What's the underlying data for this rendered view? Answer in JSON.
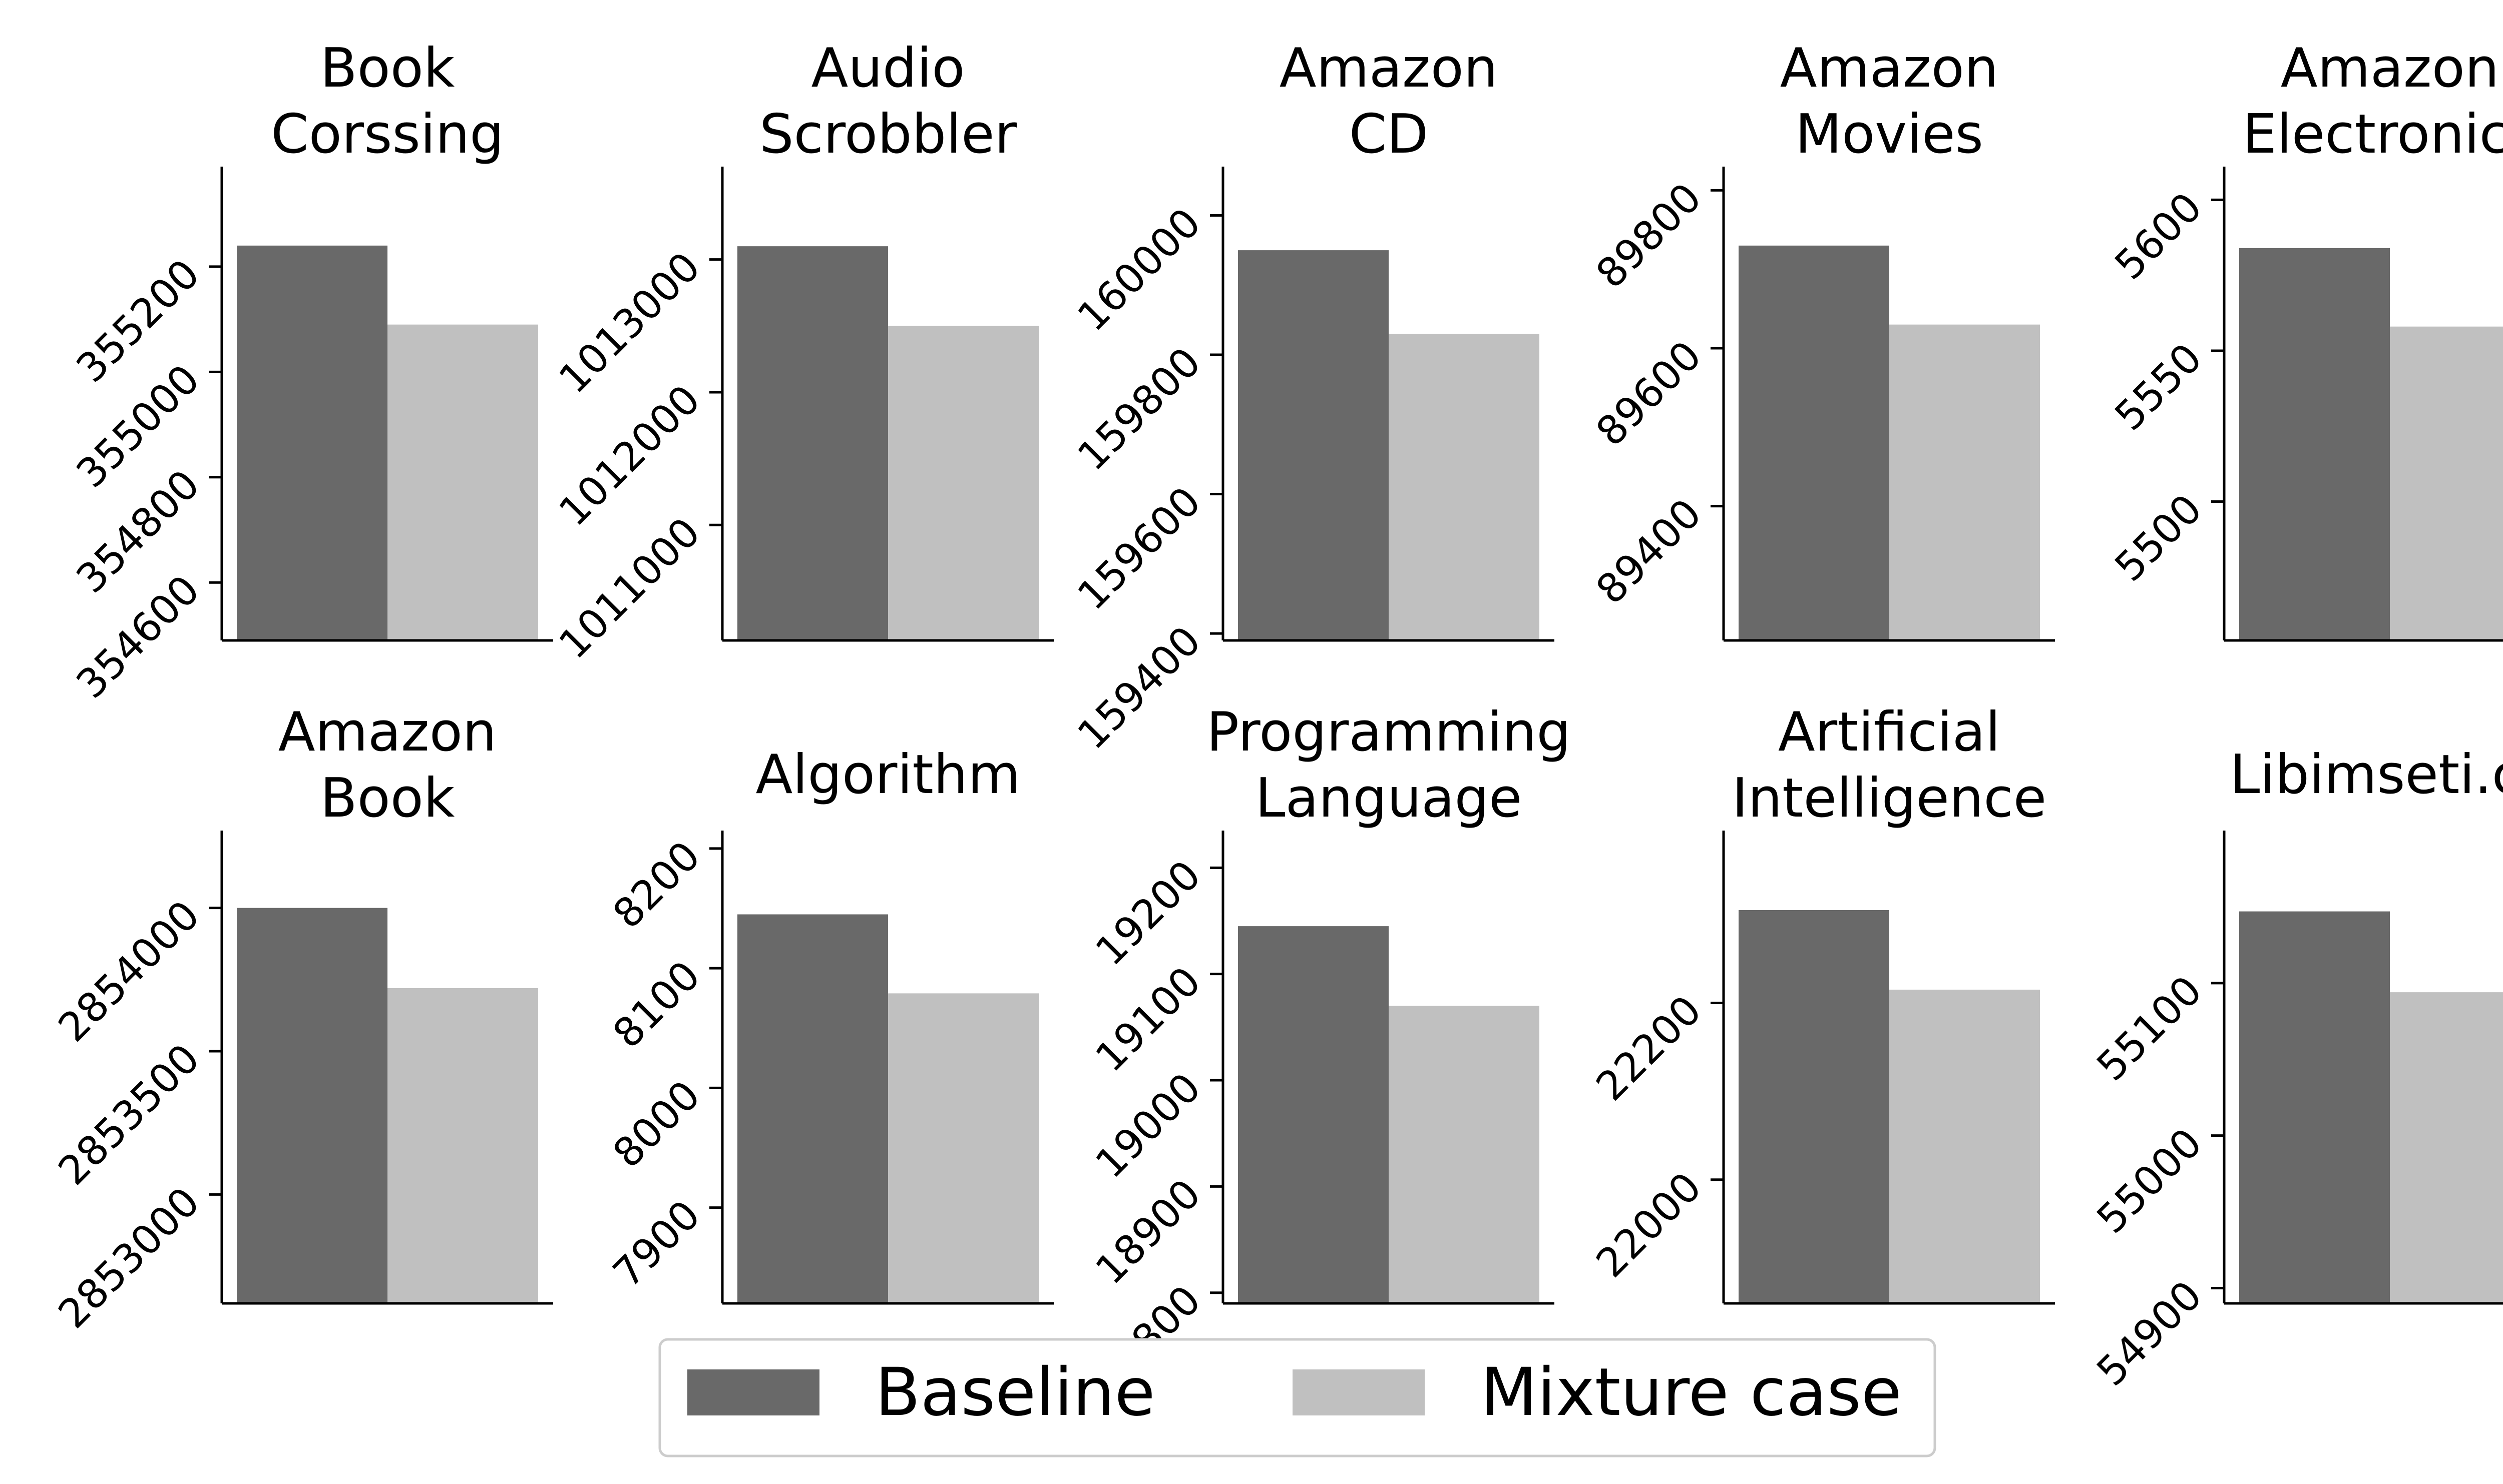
{
  "chart_data": {
    "type": "bar",
    "legend": {
      "placement": "bottom-center",
      "entries": [
        {
          "name": "Baseline",
          "color": "#696969"
        },
        {
          "name": "Mixture case",
          "color": "#c0c0c0"
        }
      ]
    },
    "grid": false,
    "panels": [
      {
        "title_lines": [
          "Book",
          "Corssing"
        ],
        "ylim": [
          354490,
          355390
        ],
        "yticks": [
          354600,
          354800,
          355000,
          355200
        ],
        "ytick_labels": [
          "354600",
          "354800",
          "355000",
          "355200"
        ],
        "series": [
          {
            "name": "Baseline",
            "value": 355240
          },
          {
            "name": "Mixture case",
            "value": 355090
          }
        ]
      },
      {
        "title_lines": [
          "Audio",
          "Scrobbler"
        ],
        "ylim": [
          1010130,
          1013700
        ],
        "yticks": [
          1011000,
          1012000,
          1013000
        ],
        "ytick_labels": [
          "1011000",
          "1012000",
          "1013000"
        ],
        "series": [
          {
            "name": "Baseline",
            "value": 1013100
          },
          {
            "name": "Mixture case",
            "value": 1012500
          }
        ]
      },
      {
        "title_lines": [
          "Amazon",
          "CD"
        ],
        "ylim": [
          159390,
          160070
        ],
        "yticks": [
          159400,
          159600,
          159800,
          160000
        ],
        "ytick_labels": [
          "159400",
          "159600",
          "159800",
          "160000"
        ],
        "series": [
          {
            "name": "Baseline",
            "value": 159950
          },
          {
            "name": "Mixture case",
            "value": 159830
          }
        ]
      },
      {
        "title_lines": [
          "Amazon",
          "Movies"
        ],
        "ylim": [
          89230,
          89830
        ],
        "yticks": [
          89400,
          89600,
          89800
        ],
        "ytick_labels": [
          "89400",
          "89600",
          "89800"
        ],
        "series": [
          {
            "name": "Baseline",
            "value": 89730
          },
          {
            "name": "Mixture case",
            "value": 89630
          }
        ]
      },
      {
        "title_lines": [
          "Amazon",
          "Electronics"
        ],
        "ylim": [
          5454,
          5611
        ],
        "yticks": [
          5500,
          5550,
          5600
        ],
        "ytick_labels": [
          "5500",
          "5550",
          "5600"
        ],
        "series": [
          {
            "name": "Baseline",
            "value": 5584
          },
          {
            "name": "Mixture case",
            "value": 5558
          }
        ]
      },
      {
        "title_lines": [
          "Amazon",
          "Book"
        ],
        "ylim": [
          2852620,
          2854270
        ],
        "yticks": [
          2853000,
          2853500,
          2854000
        ],
        "ytick_labels": [
          "2853000",
          "2853500",
          "2854000"
        ],
        "series": [
          {
            "name": "Baseline",
            "value": 2854000
          },
          {
            "name": "Mixture case",
            "value": 2853720
          }
        ]
      },
      {
        "title_lines": [
          "Algorithm"
        ],
        "ylim": [
          7820,
          8215
        ],
        "yticks": [
          7900,
          8000,
          8100,
          8200
        ],
        "ytick_labels": [
          "7900",
          "8000",
          "8100",
          "8200"
        ],
        "series": [
          {
            "name": "Baseline",
            "value": 8145
          },
          {
            "name": "Mixture case",
            "value": 8079
          }
        ]
      },
      {
        "title_lines": [
          "Programming",
          "Language"
        ],
        "ylim": [
          18790,
          19235
        ],
        "yticks": [
          18800,
          18900,
          19000,
          19100,
          19200
        ],
        "ytick_labels": [
          "18800",
          "18900",
          "19000",
          "19100",
          "19200"
        ],
        "series": [
          {
            "name": "Baseline",
            "value": 19145
          },
          {
            "name": "Mixture case",
            "value": 19070
          }
        ]
      },
      {
        "title_lines": [
          "Artificial",
          "Intelligence"
        ],
        "ylim": [
          21860,
          22395
        ],
        "yticks": [
          22000,
          22200
        ],
        "ytick_labels": [
          "22000",
          "22200"
        ],
        "series": [
          {
            "name": "Baseline",
            "value": 22305
          },
          {
            "name": "Mixture case",
            "value": 22215
          }
        ]
      },
      {
        "title_lines": [
          "Libimseti.cz"
        ],
        "ylim": [
          54890,
          55200
        ],
        "yticks": [
          54900,
          55000,
          55100
        ],
        "ytick_labels": [
          "54900",
          "55000",
          "55100"
        ],
        "series": [
          {
            "name": "Baseline",
            "value": 55147
          },
          {
            "name": "Mixture case",
            "value": 55094
          }
        ]
      }
    ]
  }
}
